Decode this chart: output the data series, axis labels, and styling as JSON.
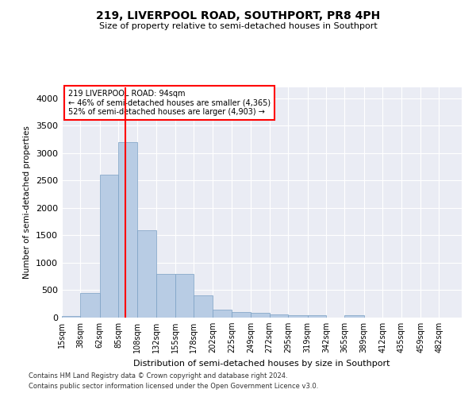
{
  "title1": "219, LIVERPOOL ROAD, SOUTHPORT, PR8 4PH",
  "title2": "Size of property relative to semi-detached houses in Southport",
  "xlabel": "Distribution of semi-detached houses by size in Southport",
  "ylabel": "Number of semi-detached properties",
  "footnote1": "Contains HM Land Registry data © Crown copyright and database right 2024.",
  "footnote2": "Contains public sector information licensed under the Open Government Licence v3.0.",
  "property_size": 94,
  "property_label": "219 LIVERPOOL ROAD: 94sqm",
  "annotation_left": "← 46% of semi-detached houses are smaller (4,365)",
  "annotation_right": "52% of semi-detached houses are larger (4,903) →",
  "bar_color": "#b8cce4",
  "bar_edge_color": "#7aa0c4",
  "vline_color": "red",
  "box_edge_color": "red",
  "categories": [
    "15sqm",
    "38sqm",
    "62sqm",
    "85sqm",
    "108sqm",
    "132sqm",
    "155sqm",
    "178sqm",
    "202sqm",
    "225sqm",
    "249sqm",
    "272sqm",
    "295sqm",
    "319sqm",
    "342sqm",
    "365sqm",
    "389sqm",
    "412sqm",
    "435sqm",
    "459sqm",
    "482sqm"
  ],
  "bin_edges": [
    15,
    38,
    62,
    85,
    108,
    132,
    155,
    178,
    202,
    225,
    249,
    272,
    295,
    319,
    342,
    365,
    389,
    412,
    435,
    459,
    482,
    510
  ],
  "values": [
    30,
    450,
    2600,
    3200,
    1600,
    800,
    800,
    400,
    150,
    100,
    80,
    55,
    50,
    50,
    5,
    45,
    5,
    5,
    5,
    5,
    5
  ],
  "ylim": [
    0,
    4200
  ],
  "yticks": [
    0,
    500,
    1000,
    1500,
    2000,
    2500,
    3000,
    3500,
    4000
  ],
  "background_color": "#eaecf4",
  "grid_color": "white",
  "figsize": [
    6.0,
    5.0
  ],
  "dpi": 100
}
